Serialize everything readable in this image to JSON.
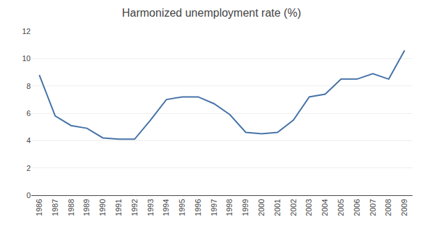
{
  "chart_data": {
    "type": "line",
    "title": "Harmonized unemployment rate (%)",
    "x": [
      1986,
      1987,
      1988,
      1989,
      1990,
      1991,
      1992,
      1993,
      1994,
      1995,
      1996,
      1997,
      1998,
      1999,
      2000,
      2001,
      2002,
      2003,
      2004,
      2005,
      2006,
      2007,
      2008,
      2009
    ],
    "values": [
      8.8,
      5.8,
      5.1,
      4.9,
      4.2,
      4.1,
      4.1,
      5.5,
      7.0,
      7.2,
      7.2,
      6.7,
      5.9,
      4.6,
      4.5,
      4.6,
      5.5,
      7.2,
      7.4,
      8.5,
      8.5,
      8.9,
      8.5,
      10.6
    ],
    "color": "#4472a8",
    "xlim": [
      1985.5,
      2009.5
    ],
    "xticks": [
      1986,
      1987,
      1988,
      1989,
      1990,
      1991,
      1992,
      1993,
      1994,
      1995,
      1996,
      1997,
      1998,
      1999,
      2000,
      2001,
      2002,
      2003,
      2004,
      2005,
      2006,
      2007,
      2008,
      2009
    ],
    "ylim": [
      0,
      12
    ],
    "yticks": [
      0,
      2,
      4,
      6,
      8,
      10,
      12
    ],
    "grid": true
  }
}
